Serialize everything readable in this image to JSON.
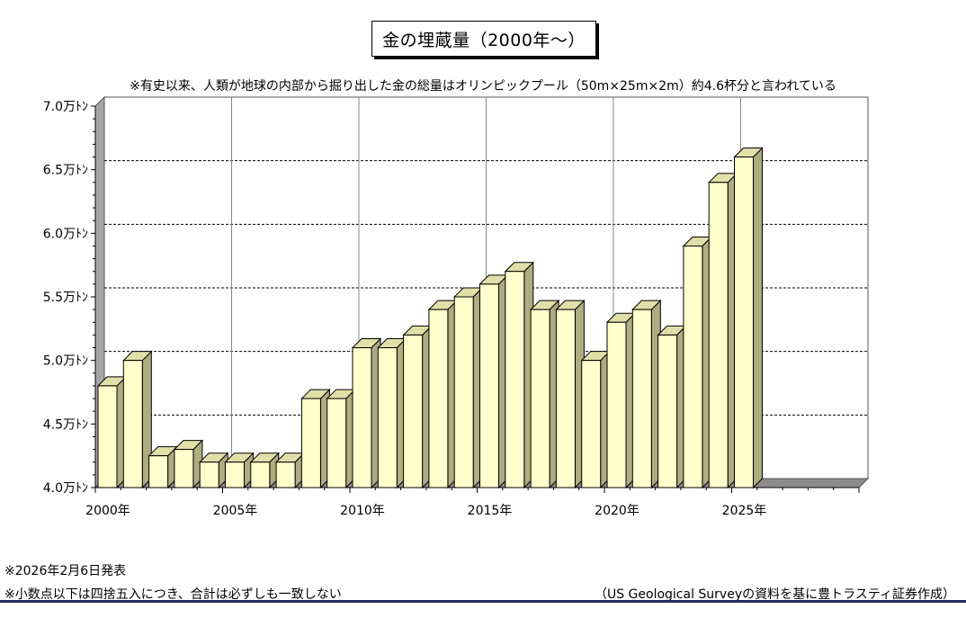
{
  "title": "金の埋蔵量（2000年～）",
  "subtitle": "※有史以来、人類が地球の内部から掘り出した金の総量はオリンピックプール（50m×25m×2m）約4.6杯分と言われている",
  "notes": {
    "release": "※2026年2月6日発表",
    "rounding": "※小数点以下は四捨五入につき、合計は必ずしも一致しない",
    "source": "（US Geological Surveyの資料を基に豊トラスティ証券作成）"
  },
  "colors": {
    "bar_front": "#ffffcc",
    "bar_top": "#e0dfa8",
    "bar_side": "#aeac80",
    "left_wall": "#a6a6a6",
    "floor": "#8c8c8c"
  },
  "chart_data": {
    "type": "bar",
    "title": "金の埋蔵量（2000年～）",
    "xlabel": "",
    "ylabel": "",
    "ylim": [
      4.0,
      7.0
    ],
    "yticks": [
      "4.0万ﾄﾝ",
      "4.5万ﾄﾝ",
      "5.0万ﾄﾝ",
      "5.5万ﾄﾝ",
      "6.0万ﾄﾝ",
      "6.5万ﾄﾝ",
      "7.0万ﾄﾝ"
    ],
    "xtick_labels": [
      "2000年",
      "2005年",
      "2010年",
      "2015年",
      "2020年",
      "2025年"
    ],
    "categories": [
      2000,
      2001,
      2002,
      2003,
      2004,
      2005,
      2006,
      2007,
      2008,
      2009,
      2010,
      2011,
      2012,
      2013,
      2014,
      2015,
      2016,
      2017,
      2018,
      2019,
      2020,
      2021,
      2022,
      2023,
      2024,
      2025
    ],
    "values": [
      4.8,
      5.0,
      4.25,
      4.3,
      4.2,
      4.2,
      4.2,
      4.2,
      4.7,
      4.7,
      5.1,
      5.1,
      5.2,
      5.4,
      5.5,
      5.6,
      5.7,
      5.4,
      5.4,
      5.0,
      5.3,
      5.4,
      5.2,
      5.9,
      6.4,
      6.6
    ],
    "grid": true
  }
}
